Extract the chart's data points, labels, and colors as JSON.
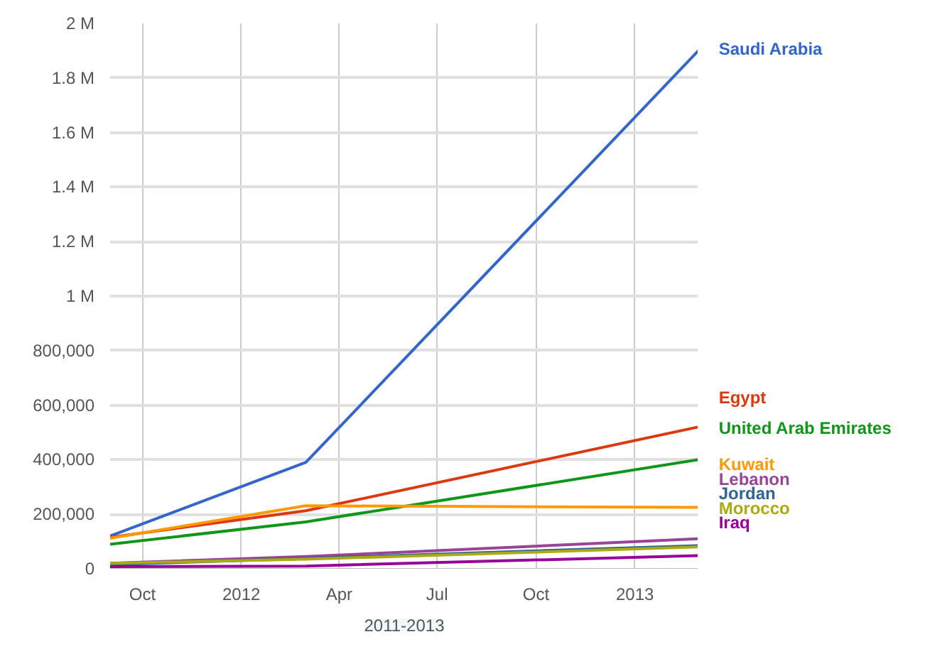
{
  "chart_data": {
    "type": "line",
    "x": [
      "2011-09-01",
      "2012-03-01",
      "2013-03-01"
    ],
    "xlim": [
      "2011-09-01",
      "2013-03-01"
    ],
    "xticks": [
      {
        "value": "2011-10-01",
        "label": "Oct"
      },
      {
        "value": "2012-01-01",
        "label": "2012"
      },
      {
        "value": "2012-04-01",
        "label": "Apr"
      },
      {
        "value": "2012-07-01",
        "label": "Jul"
      },
      {
        "value": "2012-10-01",
        "label": "Oct"
      },
      {
        "value": "2013-01-01",
        "label": "2013"
      }
    ],
    "ylim": [
      0,
      2000000
    ],
    "yticks": [
      0,
      {
        "value": 200000,
        "label": "200,000"
      },
      {
        "value": 400000,
        "label": "400,000"
      },
      {
        "value": 600000,
        "label": "600,000"
      },
      {
        "value": 800000,
        "label": "800,000"
      },
      {
        "value": 1000000,
        "label": "1 M"
      },
      {
        "value": 1200000,
        "label": "1.2 M"
      },
      {
        "value": 1400000,
        "label": "1.4 M"
      },
      {
        "value": 1600000,
        "label": "1.6 M"
      },
      {
        "value": 1800000,
        "label": "1.8 M"
      },
      {
        "value": 2000000,
        "label": "2 M"
      }
    ],
    "grid": true,
    "annotations": [
      "2011-2013"
    ],
    "series": [
      {
        "name": "Saudi Arabia",
        "color": "#3366cc",
        "values": [
          120000,
          390000,
          1900000
        ]
      },
      {
        "name": "Egypt",
        "color": "#dc3912",
        "values": [
          115000,
          213000,
          520000
        ]
      },
      {
        "name": "United Arab Emirates",
        "color": "#109618",
        "values": [
          90000,
          172000,
          400000
        ]
      },
      {
        "name": "Kuwait",
        "color": "#ff9900",
        "values": [
          112000,
          231000,
          225000
        ]
      },
      {
        "name": "Lebanon",
        "color": "#994499",
        "values": [
          20000,
          45000,
          110000
        ]
      },
      {
        "name": "Jordan",
        "color": "#316395",
        "values": [
          15000,
          38000,
          85000
        ]
      },
      {
        "name": "Morocco",
        "color": "#aaaa11",
        "values": [
          20000,
          35000,
          80000
        ]
      },
      {
        "name": "Iraq",
        "color": "#990099",
        "values": [
          8000,
          10000,
          48000
        ]
      }
    ]
  }
}
